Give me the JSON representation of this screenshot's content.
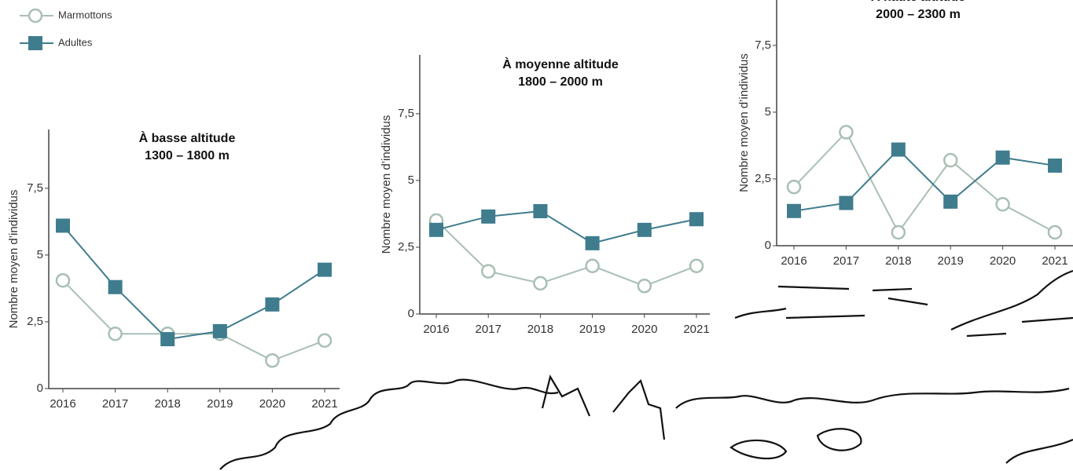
{
  "chart_data": [
    {
      "type": "line",
      "title": "À basse altitude",
      "subtitle": "1300 – 1800 m",
      "y_label": "Nombre moyen d’individus",
      "categories": [
        "2016",
        "2017",
        "2018",
        "2019",
        "2020",
        "2021"
      ],
      "series": [
        {
          "name": "Marmottons",
          "color": "#a9bfb4",
          "marker": "circle",
          "values": [
            4.05,
            2.05,
            2.05,
            2.05,
            1.05,
            1.8
          ]
        },
        {
          "name": "Adultes",
          "color": "#3f7c8e",
          "marker": "square",
          "values": [
            6.1,
            3.8,
            1.85,
            2.15,
            3.15,
            4.45
          ]
        }
      ],
      "ylim": [
        0,
        9.7
      ],
      "yticks": [
        0,
        {
          "value": 2.5,
          "label": "2,5"
        },
        5,
        {
          "value": 7.5,
          "label": "7,5"
        }
      ]
    },
    {
      "type": "line",
      "title": "À moyenne altitude",
      "subtitle": "1800 – 2000 m",
      "y_label": "Nombre moyen d’individus",
      "categories": [
        "2016",
        "2017",
        "2018",
        "2019",
        "2020",
        "2021"
      ],
      "series": [
        {
          "name": "Marmottons",
          "color": "#a9bfb4",
          "marker": "circle",
          "values": [
            3.5,
            1.6,
            1.15,
            1.8,
            1.05,
            1.8
          ]
        },
        {
          "name": "Adultes",
          "color": "#3f7c8e",
          "marker": "square",
          "values": [
            3.15,
            3.65,
            3.85,
            2.65,
            3.15,
            3.55
          ]
        }
      ],
      "ylim": [
        0,
        9.7
      ],
      "yticks": [
        0,
        {
          "value": 2.5,
          "label": "2,5"
        },
        5,
        {
          "value": 7.5,
          "label": "7,5"
        }
      ]
    },
    {
      "type": "line",
      "title": "À haute altitude",
      "subtitle": "2000 – 2300 m",
      "y_label": "Nombre moyen d’individus",
      "categories": [
        "2016",
        "2017",
        "2018",
        "2019",
        "2020",
        "2021"
      ],
      "series": [
        {
          "name": "Marmottons",
          "color": "#a9bfb4",
          "marker": "circle",
          "values": [
            2.2,
            4.25,
            0.5,
            3.2,
            1.55,
            0.5
          ]
        },
        {
          "name": "Adultes",
          "color": "#3f7c8e",
          "marker": "square",
          "values": [
            1.3,
            1.6,
            3.6,
            1.65,
            3.3,
            3.0
          ]
        }
      ],
      "ylim": [
        0,
        9.2
      ],
      "yticks": [
        0,
        {
          "value": 2.5,
          "label": "2,5"
        },
        5,
        {
          "value": 7.5,
          "label": "7,5"
        }
      ]
    }
  ]
}
